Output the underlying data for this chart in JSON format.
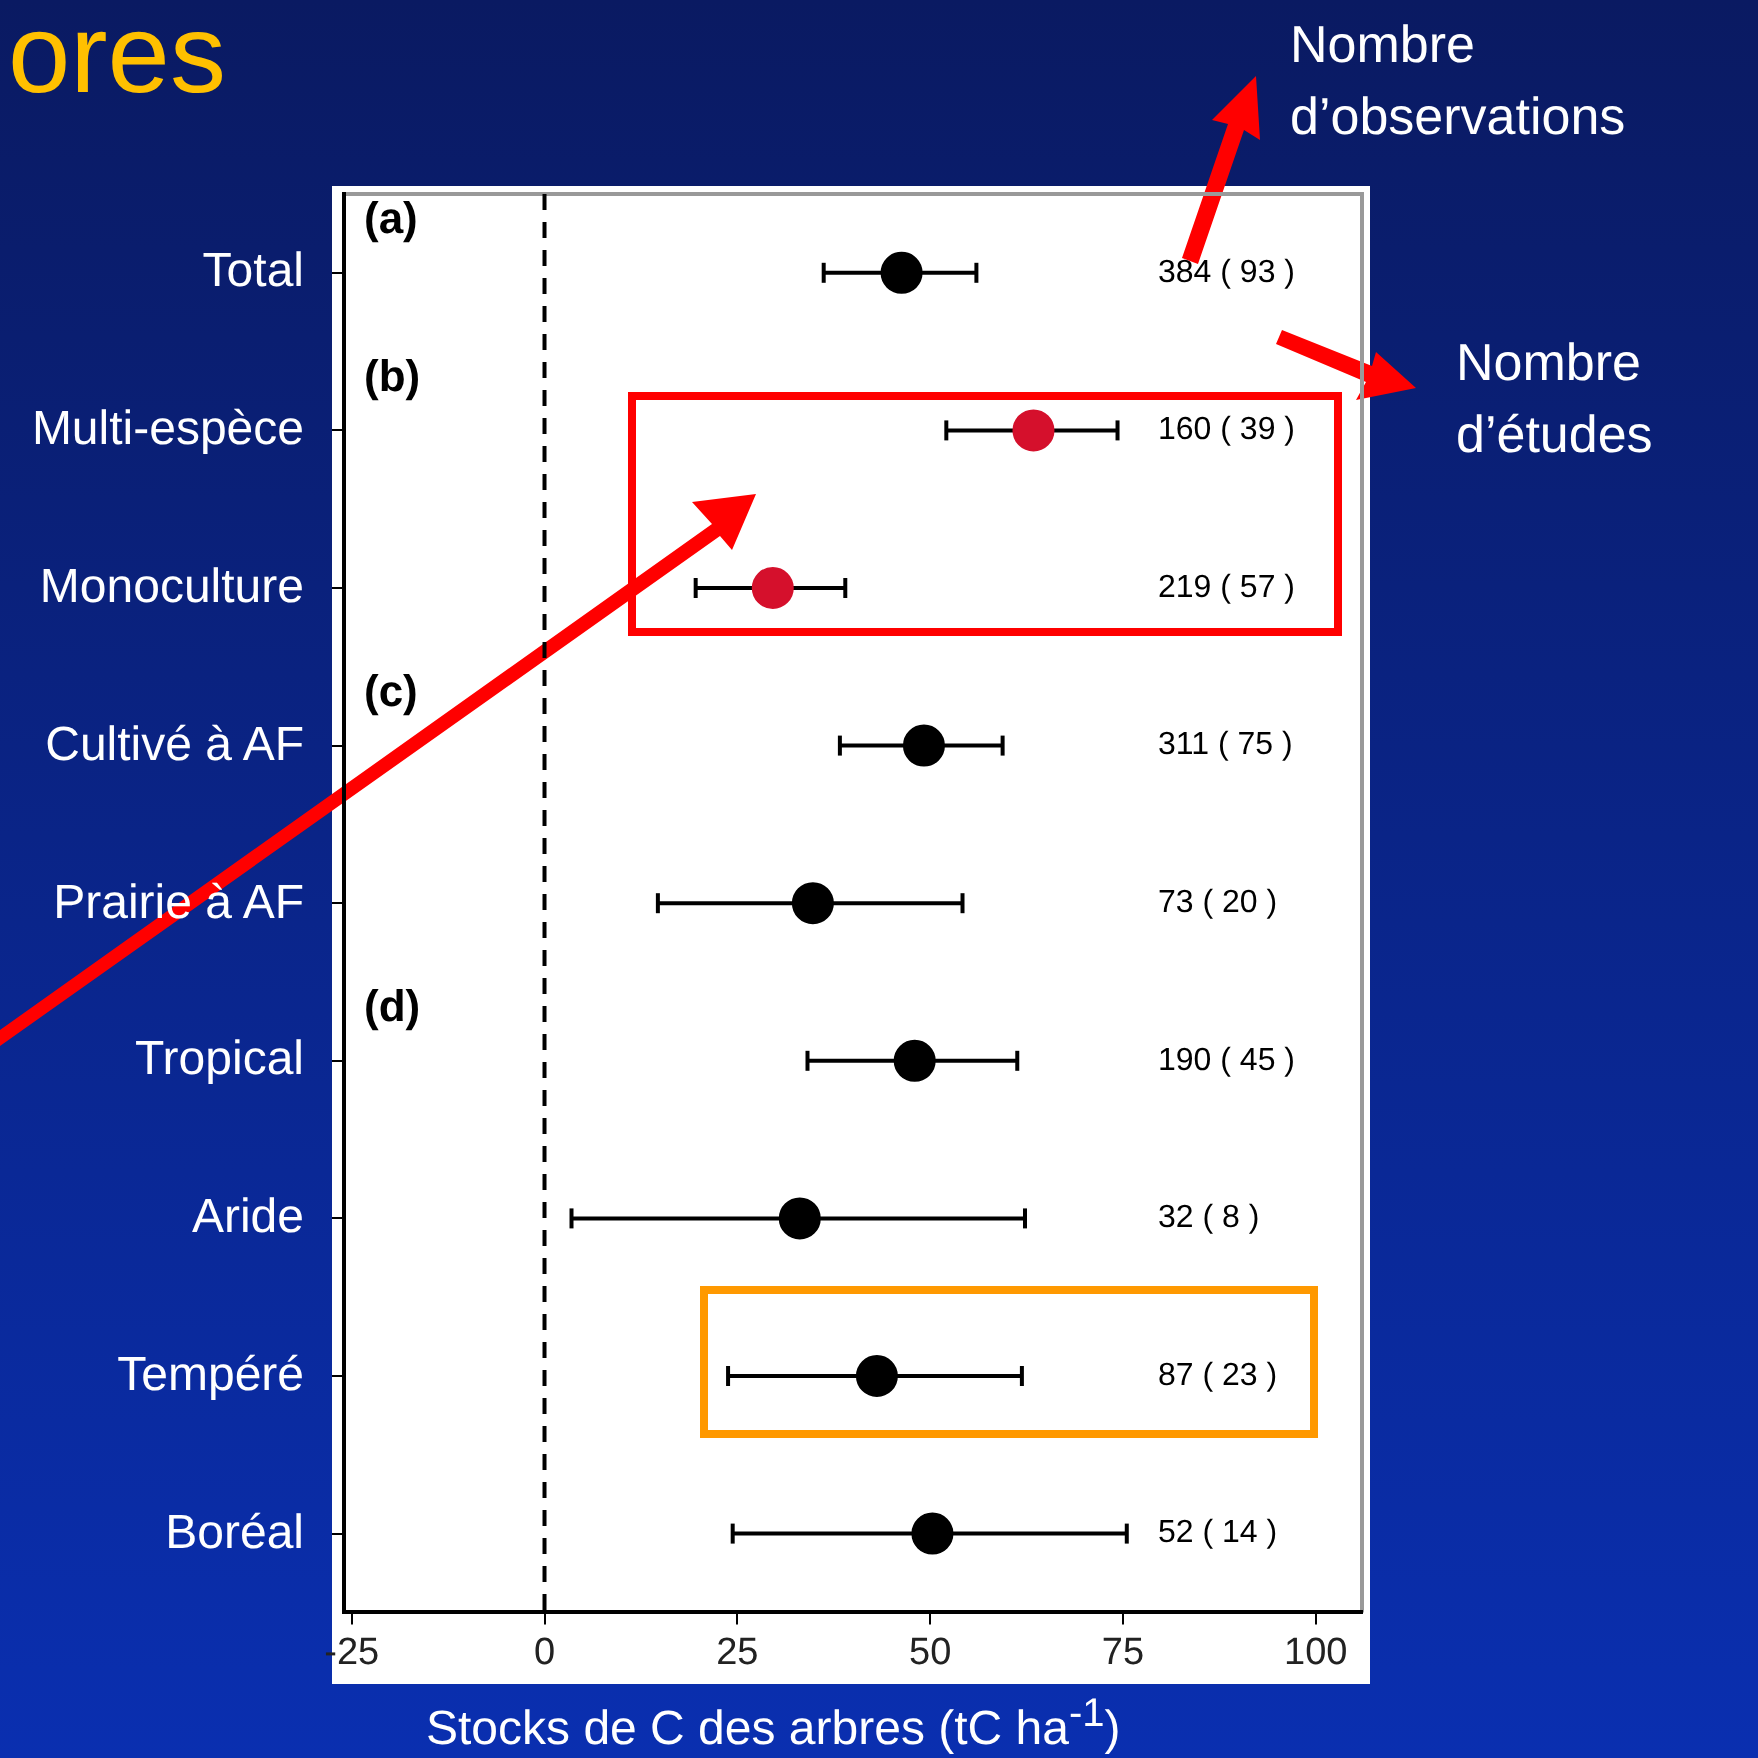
{
  "chart_data": {
    "type": "scatter",
    "orientation": "horizontal",
    "title": "ores",
    "xlabel": "Stocks de C des arbres (tC ha$^{-1}$)",
    "categories": [
      "Total",
      "Multi-espèce",
      "Monoculture",
      "Cultivé à AF",
      "Prairie à AF",
      "Tropical",
      "Aride",
      "Tempéré",
      "Boréal"
    ],
    "values": [
      46.3,
      63.4,
      29.6,
      49.2,
      34.8,
      48.0,
      33.1,
      43.1,
      50.3
    ],
    "errors": [
      [
        36.2,
        56.0
      ],
      [
        52.1,
        74.3
      ],
      [
        19.6,
        39.0
      ],
      [
        38.3,
        59.4
      ],
      [
        14.7,
        54.2
      ],
      [
        34.1,
        61.3
      ],
      [
        3.5,
        62.3
      ],
      [
        23.8,
        61.9
      ],
      [
        24.4,
        75.5
      ]
    ],
    "colors": [
      "#000000",
      "#d5102c",
      "#d5102c",
      "#000000",
      "#000000",
      "#000000",
      "#000000",
      "#000000",
      "#000000"
    ],
    "marker": "circle",
    "xlim": [
      -26,
      106
    ],
    "xticks": [
      -25,
      0,
      25,
      50,
      75,
      100
    ],
    "grid": false,
    "ref_lines": [
      {
        "axis": "x",
        "value": 0,
        "color": "#000000",
        "line_style": "dashed"
      }
    ],
    "annotations": [
      "(a)",
      "(b)",
      "(c)",
      "(d)",
      "384 ( 93 )",
      "160 ( 39 )",
      "219 ( 57 )",
      "311 ( 75 )",
      "73 ( 20 )",
      "190 ( 45 )",
      "32 ( 8 )",
      "87 ( 23 )",
      "52 ( 14 )",
      "Nombre d’observations",
      "Nombre d’études"
    ]
  }
}
